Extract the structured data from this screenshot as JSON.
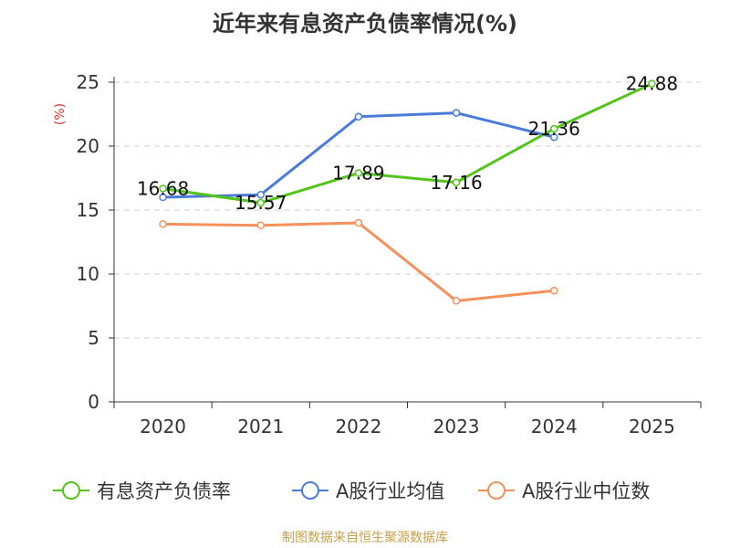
{
  "chart_data": {
    "type": "line",
    "title": "近年来有息资产负债率情况(%)",
    "ylabel": "(%)",
    "xlabel": "",
    "categories": [
      "2020",
      "2021",
      "2022",
      "2023",
      "2024",
      "2025"
    ],
    "ylim": [
      0,
      25
    ],
    "yticks": [
      0,
      5,
      10,
      15,
      20,
      25
    ],
    "grid": true,
    "legend_position": "bottom",
    "series": [
      {
        "name": "有息资产负债率",
        "color": "#52c41a",
        "values": [
          16.68,
          15.57,
          17.89,
          17.16,
          21.36,
          24.88
        ],
        "labels": [
          "16.68",
          "15.57",
          "17.89",
          "17.16",
          "21.36",
          "24.88"
        ]
      },
      {
        "name": "A股行业均值",
        "color": "#4a7bd8",
        "values": [
          16.0,
          16.2,
          22.3,
          22.6,
          20.7,
          null
        ]
      },
      {
        "name": "A股行业中位数",
        "color": "#f5905a",
        "values": [
          13.9,
          13.8,
          14.0,
          7.9,
          8.7,
          null
        ]
      }
    ]
  },
  "source_text": "制图数据来自恒生聚源数据库"
}
